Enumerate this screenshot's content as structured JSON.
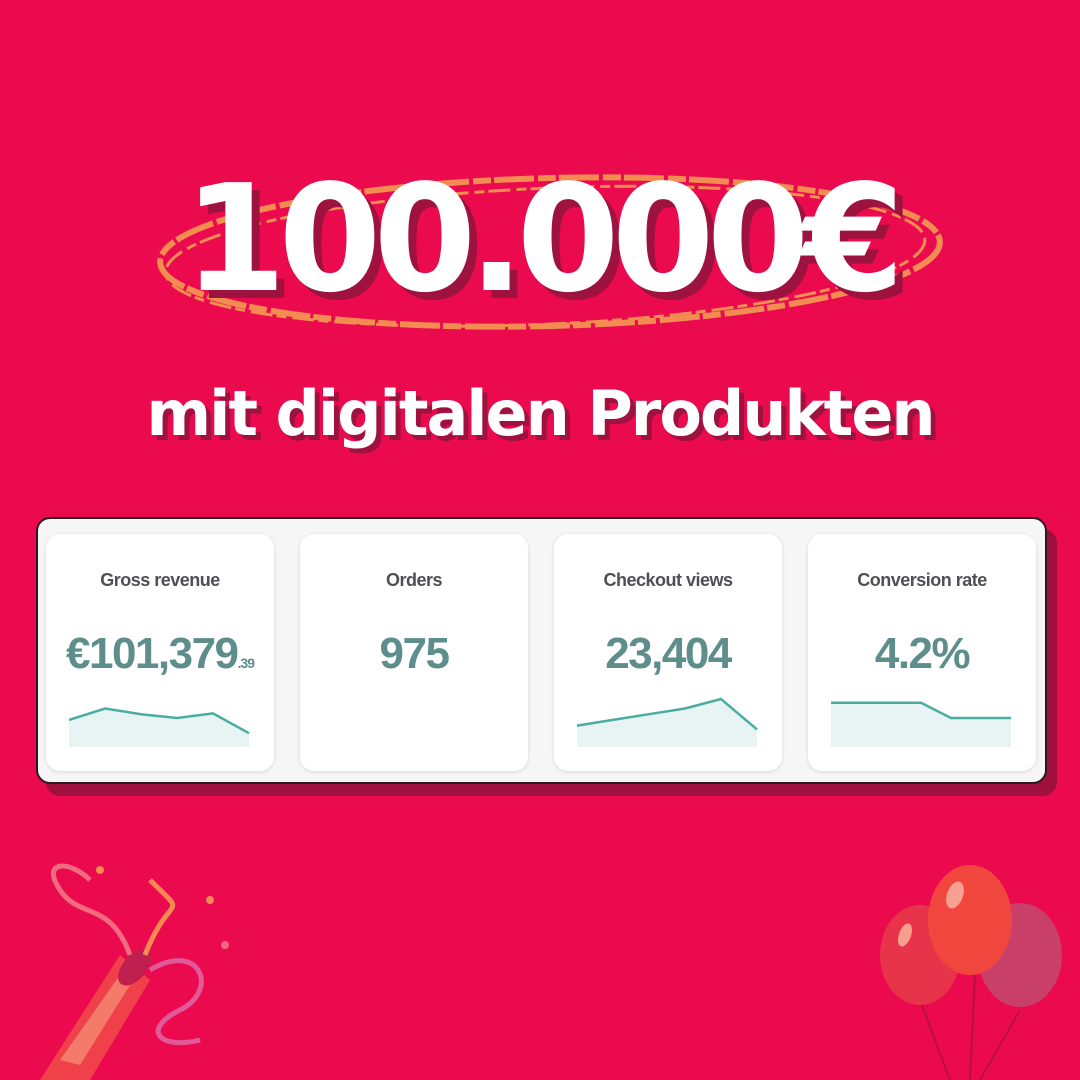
{
  "headline": "100.000€",
  "subheadline": "mit digitalen Produkten",
  "colors": {
    "background": "#EC0A4E",
    "accent_circle": "#F28C50",
    "metric": "#5E8E8C",
    "sparkline": "#4AADA0",
    "sparkline_fill": "#E8F4F4"
  },
  "metrics": [
    {
      "label": "Gross revenue",
      "value": "€101,379",
      "cents": ".39",
      "sparkline": [
        0.45,
        0.75,
        0.6,
        0.5,
        0.62,
        0.1
      ]
    },
    {
      "label": "Orders",
      "value": "975",
      "cents": "",
      "sparkline": []
    },
    {
      "label": "Checkout views",
      "value": "23,404",
      "cents": "",
      "sparkline": [
        0.3,
        0.45,
        0.6,
        0.75,
        1.0,
        0.2
      ]
    },
    {
      "label": "Conversion rate",
      "value": "4.2%",
      "cents": "",
      "sparkline": [
        0.9,
        0.9,
        0.9,
        0.9,
        0.5,
        0.5,
        0.5
      ]
    }
  ],
  "decorations": {
    "left": "party-popper-icon",
    "right": "balloons-icon"
  }
}
